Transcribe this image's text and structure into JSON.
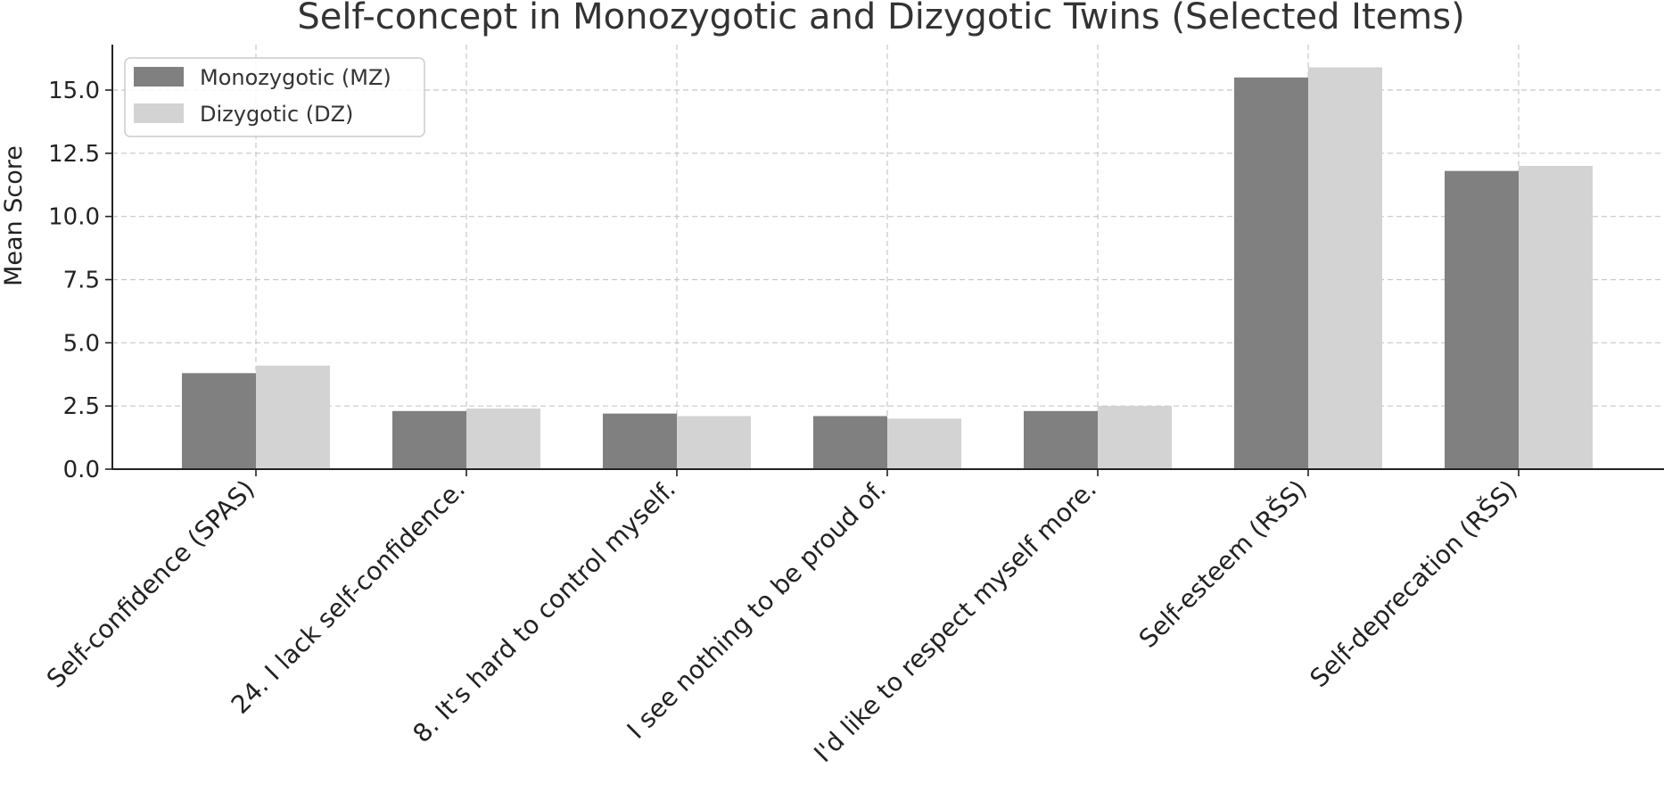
{
  "chart_data": {
    "type": "bar",
    "title": "Self-concept in Monozygotic and Dizygotic Twins (Selected Items)",
    "xlabel": "",
    "ylabel": "Mean Score",
    "ylim": [
      0,
      16.8
    ],
    "yticks": [
      "0.0",
      "2.5",
      "5.0",
      "7.5",
      "10.0",
      "12.5",
      "15.0"
    ],
    "ytick_values": [
      0,
      2.5,
      5,
      7.5,
      10,
      12.5,
      15
    ],
    "grid": true,
    "legend_position": "top-left",
    "categories": [
      "Self-confidence (SPAS)",
      "24. I lack self-confidence.",
      "8. It's hard to control myself.",
      "I see nothing to be proud of.",
      "I'd like to respect myself more.",
      "Self-esteem (RŠS)",
      "Self-deprecation (RŠS)"
    ],
    "series": [
      {
        "name": "Monozygotic (MZ)",
        "color": "#808080",
        "values": [
          3.8,
          2.3,
          2.2,
          2.1,
          2.3,
          15.5,
          11.8
        ]
      },
      {
        "name": "Dizygotic (DZ)",
        "color": "#d3d3d3",
        "values": [
          4.1,
          2.4,
          2.1,
          2.0,
          2.5,
          15.9,
          12.0
        ]
      }
    ]
  }
}
